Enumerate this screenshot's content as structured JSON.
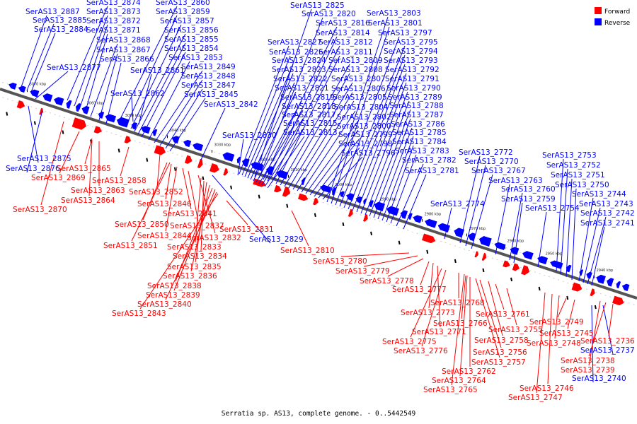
{
  "caption": "Serratia sp. AS13, complete genome. - 0..5442549",
  "legend": [
    {
      "label": "Forward",
      "color": "#ff0000"
    },
    {
      "label": "Reverse",
      "color": "#0000ff"
    }
  ],
  "colors": {
    "forward": "#ff0000",
    "reverse": "#0000ff",
    "backbone": "#555555",
    "tick": "#000000"
  },
  "ticks": [
    "3070 kbp",
    "3060 kbp",
    "3050 kbp",
    "3040 kbp",
    "3030 kbp",
    "3020 kbp",
    "3010 kbp",
    "3000 kbp",
    "2990 kbp",
    "2980 kbp",
    "2970 kbp",
    "2960 kbp",
    "2950 kbp",
    "2940 kbp"
  ],
  "reverse_labels": [
    "SerAS13_2887",
    "SerAS13_2885",
    "SerAS13_2884",
    "SerAS13_2877",
    "SerAS13_2874",
    "SerAS13_2873",
    "SerAS13_2872",
    "SerAS13_2871",
    "SerAS13_2868",
    "SerAS13_2867",
    "SerAS13_2866",
    "SerAS13_2860",
    "SerAS13_2859",
    "SerAS13_2857",
    "SerAS13_2856",
    "SerAS13_2855",
    "SerAS13_2854",
    "SerAS13_2853",
    "SerAS13_2849",
    "SerAS13_2848",
    "SerAS13_2847",
    "SerAS13_2845",
    "SerAS13_2861",
    "SerAS13_2862",
    "SerAS13_2842",
    "SerAS13_2830",
    "SerAS13_2825",
    "SerAS13_2820",
    "SerAS13_2816",
    "SerAS13_2814",
    "SerAS13_2812",
    "SerAS13_2811",
    "SerAS13_2809",
    "SerAS13_2808",
    "SerAS13_2807",
    "SerAS13_2806",
    "SerAS13_2805",
    "SerAS13_2804",
    "SerAS13_2802",
    "SerAS13_2800",
    "SerAS13_2799",
    "SerAS13_2798",
    "SerAS13_2796",
    "SerAS13_2827",
    "SerAS13_2826",
    "SerAS13_2824",
    "SerAS13_2823",
    "SerAS13_2822",
    "SerAS13_2821",
    "SerAS13_2819",
    "SerAS13_2818",
    "SerAS13_2817",
    "SerAS13_2815",
    "SerAS13_2813",
    "SerAS13_2803",
    "SerAS13_2801",
    "SerAS13_2797",
    "SerAS13_2795",
    "SerAS13_2794",
    "SerAS13_2793",
    "SerAS13_2792",
    "SerAS13_2791",
    "SerAS13_2790",
    "SerAS13_2789",
    "SerAS13_2788",
    "SerAS13_2787",
    "SerAS13_2786",
    "SerAS13_2785",
    "SerAS13_2784",
    "SerAS13_2783",
    "SerAS13_2782",
    "SerAS13_2781",
    "SerAS13_2772",
    "SerAS13_2770",
    "SerAS13_2767",
    "SerAS13_2763",
    "SerAS13_2760",
    "SerAS13_2759",
    "SerAS13_2754",
    "SerAS13_2774",
    "SerAS13_2753",
    "SerAS13_2752",
    "SerAS13_2751",
    "SerAS13_2750",
    "SerAS13_2744",
    "SerAS13_2743",
    "SerAS13_2742",
    "SerAS13_2741",
    "SerAS13_2875",
    "SerAS13_2876",
    "SerAS13_2829",
    "SerAS13_2737",
    "SerAS13_2740"
  ],
  "forward_labels": [
    "SerAS13_2865",
    "SerAS13_2869",
    "SerAS13_2863",
    "SerAS13_2864",
    "SerAS13_2870",
    "SerAS13_2858",
    "SerAS13_2852",
    "SerAS13_2846",
    "SerAS13_2841",
    "SerAS13_2850",
    "SerAS13_2837",
    "SerAS13_2844",
    "SerAS13_2832",
    "SerAS13_2851",
    "SerAS13_2833",
    "SerAS13_2834",
    "SerAS13_2835",
    "SerAS13_2836",
    "SerAS13_2838",
    "SerAS13_2839",
    "SerAS13_2840",
    "SerAS13_2843",
    "SerAS13_2831",
    "SerAS13_2810",
    "SerAS13_2780",
    "SerAS13_2779",
    "SerAS13_2778",
    "SerAS13_2777",
    "SerAS13_2768",
    "SerAS13_2773",
    "SerAS13_2766",
    "SerAS13_2761",
    "SerAS13_2771",
    "SerAS13_2755",
    "SerAS13_2775",
    "SerAS13_2758",
    "SerAS13_2776",
    "SerAS13_2756",
    "SerAS13_2757",
    "SerAS13_2762",
    "SerAS13_2764",
    "SerAS13_2765",
    "SerAS13_2749",
    "SerAS13_2745",
    "SerAS13_2748",
    "SerAS13_2736",
    "SerAS13_2738",
    "SerAS13_2739",
    "SerAS13_2746",
    "SerAS13_2747"
  ]
}
